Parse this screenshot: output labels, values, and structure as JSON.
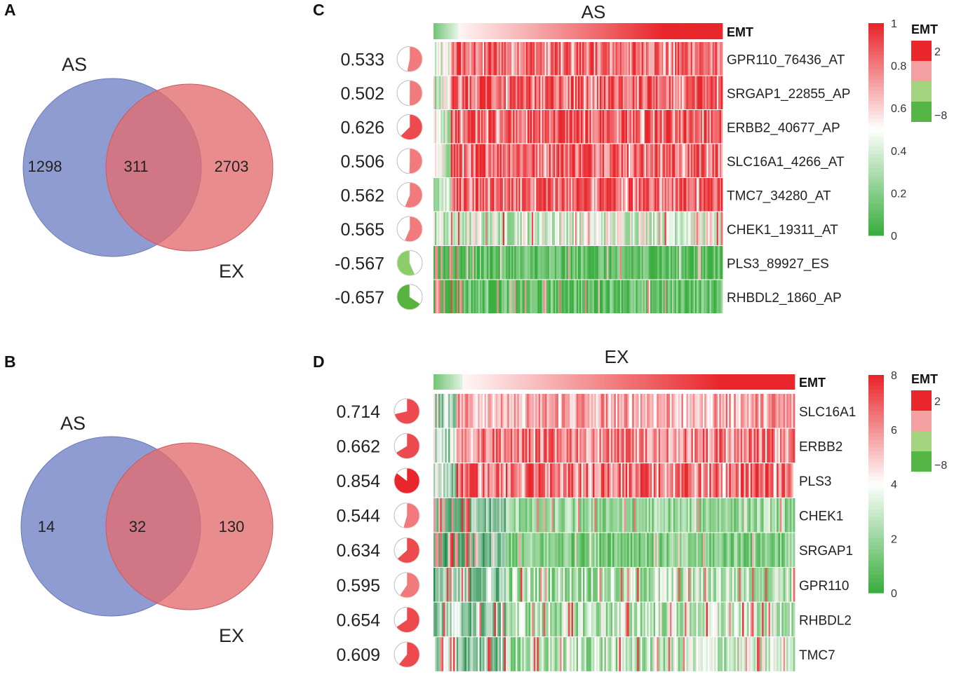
{
  "panels": {
    "A": "A",
    "B": "B",
    "C": "C",
    "D": "D"
  },
  "colors": {
    "as_circle": "#7f8ecb",
    "ex_circle": "#e36b6e",
    "overlap": "#a85268",
    "red": "#e8262b",
    "green": "#3aae3f",
    "dark_green": "#12833a",
    "white": "#ffffff"
  },
  "chart_data": [
    {
      "type": "venn",
      "panel": "A",
      "set_labels": [
        "AS",
        "EX"
      ],
      "counts": {
        "as_only": "1298",
        "both": "311",
        "ex_only": "2703"
      }
    },
    {
      "type": "venn",
      "panel": "B",
      "set_labels": [
        "AS",
        "EX"
      ],
      "counts": {
        "as_only": "14",
        "both": "32",
        "ex_only": "130"
      }
    },
    {
      "type": "heatmap",
      "panel": "C",
      "title": "AS",
      "annotation_label": "EMT",
      "rows": [
        {
          "gene": "GPR110_76436_AT",
          "corr": "0.533",
          "corr_value": 0.533,
          "base": 0.85,
          "pattern": "hi"
        },
        {
          "gene": "SRGAP1_22855_AP",
          "corr": "0.502",
          "corr_value": 0.502,
          "base": 0.9,
          "pattern": "hi"
        },
        {
          "gene": "ERBB2_40677_AP",
          "corr": "0.626",
          "corr_value": 0.626,
          "base": 0.9,
          "pattern": "hi"
        },
        {
          "gene": "SLC16A1_4266_AT",
          "corr": "0.506",
          "corr_value": 0.506,
          "base": 0.88,
          "pattern": "hi"
        },
        {
          "gene": "TMC7_34280_AT",
          "corr": "0.562",
          "corr_value": 0.562,
          "base": 0.9,
          "pattern": "hi"
        },
        {
          "gene": "CHEK1_19311_AT",
          "corr": "0.565",
          "corr_value": 0.565,
          "base": 0.38,
          "pattern": "mid"
        },
        {
          "gene": "PLS3_89927_ES",
          "corr": "-0.567",
          "corr_value": -0.567,
          "base": 0.1,
          "pattern": "lo"
        },
        {
          "gene": "RHBDL2_1860_AP",
          "corr": "-0.657",
          "corr_value": -0.657,
          "base": 0.12,
          "pattern": "lo"
        }
      ],
      "scale": {
        "min": 0,
        "max": 1,
        "ticks": [
          "0",
          "0.2",
          "0.4",
          "0.6",
          "0.8",
          "1"
        ]
      },
      "emt_legend": {
        "title": "EMT",
        "max_label": "2",
        "min_label": "−8"
      }
    },
    {
      "type": "heatmap",
      "panel": "D",
      "title": "EX",
      "annotation_label": "EMT",
      "rows": [
        {
          "gene": "SLC16A1",
          "corr": "0.714",
          "corr_value": 0.714,
          "base": 0.7,
          "pattern": "hi"
        },
        {
          "gene": "ERBB2",
          "corr": "0.662",
          "corr_value": 0.662,
          "base": 0.82,
          "pattern": "hi"
        },
        {
          "gene": "PLS3",
          "corr": "0.854",
          "corr_value": 0.854,
          "base": 0.85,
          "pattern": "hi"
        },
        {
          "gene": "CHEK1",
          "corr": "0.544",
          "corr_value": 0.544,
          "base": 0.25,
          "pattern": "lo"
        },
        {
          "gene": "SRGAP1",
          "corr": "0.634",
          "corr_value": 0.634,
          "base": 0.2,
          "pattern": "lo"
        },
        {
          "gene": "GPR110",
          "corr": "0.595",
          "corr_value": 0.595,
          "base": 0.28,
          "pattern": "mid"
        },
        {
          "gene": "RHBDL2",
          "corr": "0.654",
          "corr_value": 0.654,
          "base": 0.3,
          "pattern": "mid"
        },
        {
          "gene": "TMC7",
          "corr": "0.609",
          "corr_value": 0.609,
          "base": 0.3,
          "pattern": "mid"
        }
      ],
      "scale": {
        "min": 0,
        "max": 8,
        "ticks": [
          "0",
          "2",
          "4",
          "6",
          "8"
        ]
      },
      "emt_legend": {
        "title": "EMT",
        "max_label": "2",
        "min_label": "−8"
      }
    }
  ]
}
